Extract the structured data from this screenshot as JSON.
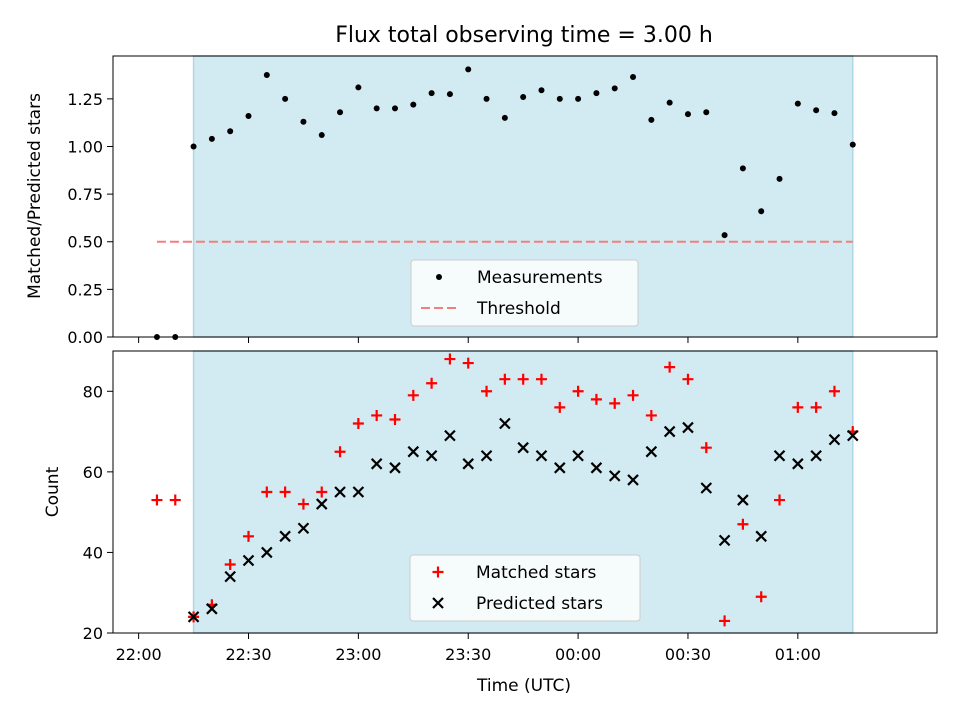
{
  "title": "Flux total observing time = 3.00 h",
  "colors": {
    "shade": "#add8e6",
    "measurement": "#000000",
    "threshold": "#f08080",
    "matched": "#ff0000",
    "predicted": "#000000"
  },
  "chart_data": [
    {
      "type": "scatter",
      "ylabel": "Matched/Predicted stars",
      "ylim": [
        0,
        1.475
      ],
      "yticks": [
        "0.00",
        "0.25",
        "0.50",
        "0.75",
        "1.00",
        "1.25"
      ],
      "xlim": [
        "21:53",
        "01:38"
      ],
      "shaded_range": [
        "22:15",
        "01:15"
      ],
      "legend": {
        "placement": "lower-center",
        "entries": [
          "Measurements",
          "Threshold"
        ]
      },
      "threshold": {
        "name": "Threshold",
        "y": 0.5,
        "x_start": "22:05",
        "x_end": "01:15"
      },
      "series": [
        {
          "name": "Measurements",
          "marker": "dot",
          "x": [
            "22:05",
            "22:10",
            "22:15",
            "22:20",
            "22:25",
            "22:30",
            "22:35",
            "22:40",
            "22:45",
            "22:50",
            "22:55",
            "23:00",
            "23:05",
            "23:10",
            "23:15",
            "23:20",
            "23:25",
            "23:30",
            "23:35",
            "23:40",
            "23:45",
            "23:50",
            "23:55",
            "00:00",
            "00:05",
            "00:10",
            "00:15",
            "00:20",
            "00:25",
            "00:30",
            "00:35",
            "00:40",
            "00:45",
            "00:50",
            "00:55",
            "01:00",
            "01:05",
            "01:10",
            "01:15"
          ],
          "y": [
            0.0,
            0.0,
            1.0,
            1.04,
            1.08,
            1.16,
            1.375,
            1.25,
            1.13,
            1.06,
            1.18,
            1.31,
            1.2,
            1.2,
            1.22,
            1.28,
            1.275,
            1.405,
            1.25,
            1.15,
            1.26,
            1.295,
            1.25,
            1.25,
            1.28,
            1.305,
            1.365,
            1.14,
            1.23,
            1.17,
            1.18,
            0.535,
            0.885,
            0.66,
            0.83,
            1.225,
            1.19,
            1.175,
            1.01
          ]
        }
      ]
    },
    {
      "type": "scatter",
      "xlabel": "Time (UTC)",
      "ylabel": "Count",
      "ylim": [
        20,
        90
      ],
      "yticks": [
        "20",
        "40",
        "60",
        "80"
      ],
      "xlim": [
        "21:53",
        "01:38"
      ],
      "xticks": [
        "22:00",
        "22:30",
        "23:00",
        "23:30",
        "00:00",
        "00:30",
        "01:00"
      ],
      "shaded_range": [
        "22:15",
        "01:15"
      ],
      "legend": {
        "placement": "lower-center",
        "entries": [
          "Matched stars",
          "Predicted stars"
        ]
      },
      "series": [
        {
          "name": "Matched stars",
          "marker": "plus",
          "x": [
            "22:05",
            "22:10",
            "22:15",
            "22:20",
            "22:25",
            "22:30",
            "22:35",
            "22:40",
            "22:45",
            "22:50",
            "22:55",
            "23:00",
            "23:05",
            "23:10",
            "23:15",
            "23:20",
            "23:25",
            "23:30",
            "23:35",
            "23:40",
            "23:45",
            "23:50",
            "23:55",
            "00:00",
            "00:05",
            "00:10",
            "00:15",
            "00:20",
            "00:25",
            "00:30",
            "00:35",
            "00:40",
            "00:45",
            "00:50",
            "00:55",
            "01:00",
            "01:05",
            "01:10",
            "01:15"
          ],
          "y": [
            53,
            53,
            24,
            27,
            37,
            44,
            55,
            55,
            52,
            55,
            65,
            72,
            74,
            73,
            79,
            82,
            88,
            87,
            80,
            83,
            83,
            83,
            76,
            80,
            78,
            77,
            79,
            74,
            86,
            83,
            66,
            23,
            47,
            29,
            53,
            76,
            76,
            80,
            70
          ]
        },
        {
          "name": "Predicted stars",
          "marker": "x",
          "x": [
            "22:15",
            "22:20",
            "22:25",
            "22:30",
            "22:35",
            "22:40",
            "22:45",
            "22:50",
            "22:55",
            "23:00",
            "23:05",
            "23:10",
            "23:15",
            "23:20",
            "23:25",
            "23:30",
            "23:35",
            "23:40",
            "23:45",
            "23:50",
            "23:55",
            "00:00",
            "00:05",
            "00:10",
            "00:15",
            "00:20",
            "00:25",
            "00:30",
            "00:35",
            "00:40",
            "00:45",
            "00:50",
            "00:55",
            "01:00",
            "01:05",
            "01:10",
            "01:15"
          ],
          "y": [
            24,
            26,
            34,
            38,
            40,
            44,
            46,
            52,
            55,
            55,
            62,
            61,
            65,
            64,
            69,
            62,
            64,
            72,
            66,
            64,
            61,
            64,
            61,
            59,
            58,
            65,
            70,
            71,
            56,
            43,
            53,
            44,
            64,
            62,
            64,
            68,
            69
          ]
        }
      ]
    }
  ]
}
